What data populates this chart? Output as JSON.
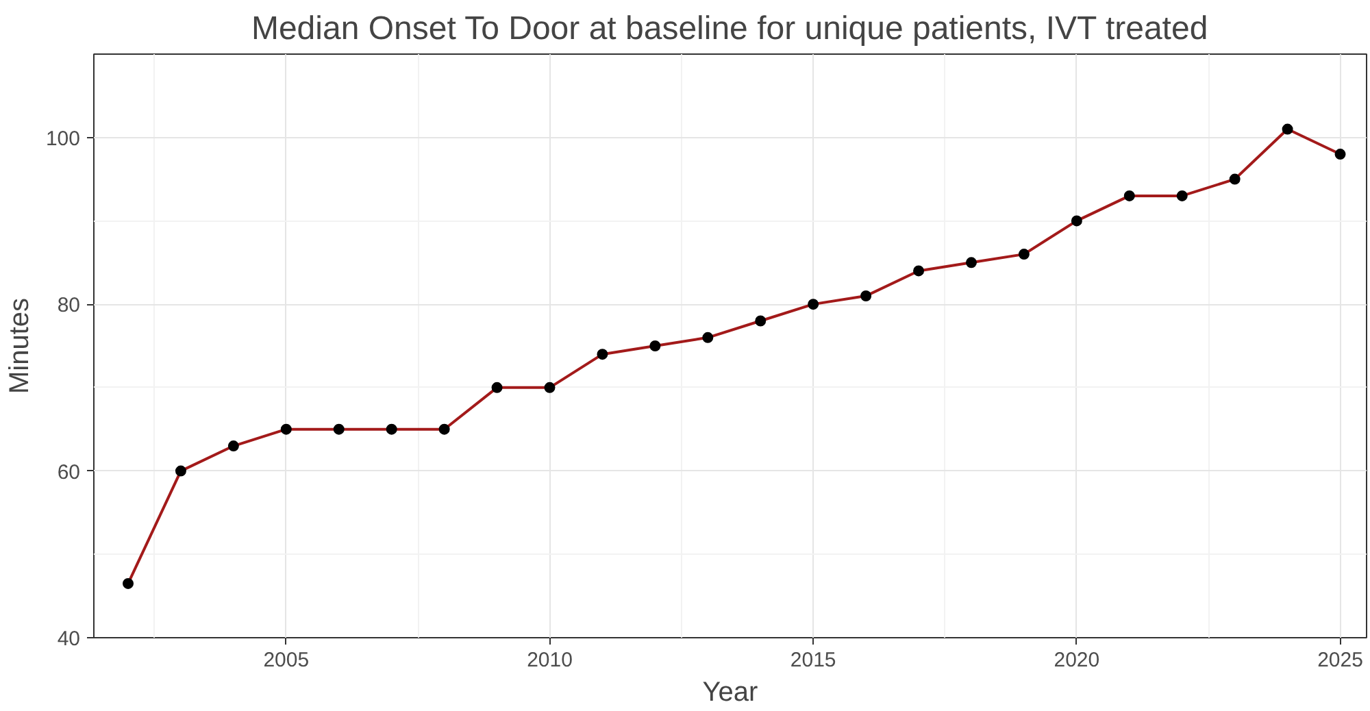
{
  "chart_data": {
    "type": "line",
    "title": "Median Onset To Door at baseline for unique patients, IVT treated",
    "xlabel": "Year",
    "ylabel": "Minutes",
    "x": [
      2002,
      2003,
      2004,
      2005,
      2006,
      2007,
      2008,
      2009,
      2010,
      2011,
      2012,
      2013,
      2014,
      2015,
      2016,
      2017,
      2018,
      2019,
      2020,
      2021,
      2022,
      2023,
      2024,
      2025
    ],
    "series": [
      {
        "color": "#a31a1a",
        "values": [
          46.5,
          60,
          63,
          65,
          65,
          65,
          65,
          70,
          70,
          74,
          75,
          76,
          78,
          80,
          81,
          84,
          85,
          86,
          90,
          93,
          93,
          95,
          101,
          98
        ]
      }
    ],
    "xlim": [
      2001.35,
      2025.5
    ],
    "ylim": [
      40,
      110
    ],
    "xticks": [
      2005,
      2010,
      2015,
      2020,
      2025
    ],
    "yticks": [
      40,
      60,
      80,
      100
    ],
    "grid": true,
    "marker": "circle",
    "line_style": "solid"
  }
}
